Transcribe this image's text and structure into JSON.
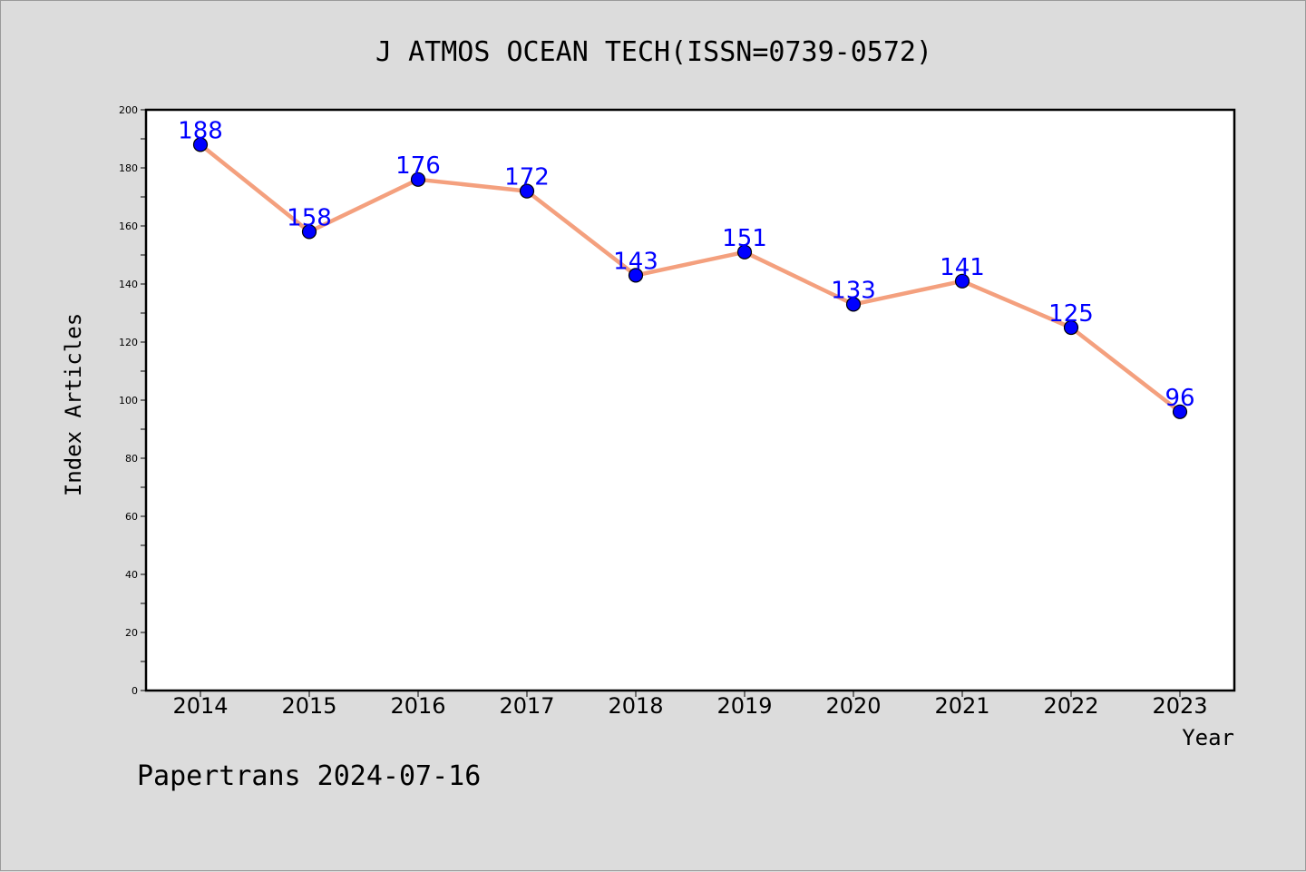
{
  "chart_data": {
    "type": "line",
    "title": "J ATMOS OCEAN TECH(ISSN=0739-0572)",
    "xlabel": "Year",
    "ylabel": "Index Articles",
    "categories": [
      "2014",
      "2015",
      "2016",
      "2017",
      "2018",
      "2019",
      "2020",
      "2021",
      "2022",
      "2023"
    ],
    "series": [
      {
        "values": [
          188,
          158,
          176,
          172,
          143,
          151,
          133,
          141,
          125,
          96
        ]
      }
    ],
    "ylim": [
      0,
      200
    ],
    "yticks": [
      0,
      20,
      40,
      60,
      80,
      100,
      120,
      140,
      160,
      180,
      200
    ],
    "grid": false,
    "data_labels": true,
    "colors": {
      "line": "#f4a07e",
      "marker": "#0000ff",
      "label": "#0000ff",
      "plot_bg": "#ffffff",
      "page_bg": "#dcdcdc"
    }
  },
  "footer": "Papertrans 2024-07-16"
}
